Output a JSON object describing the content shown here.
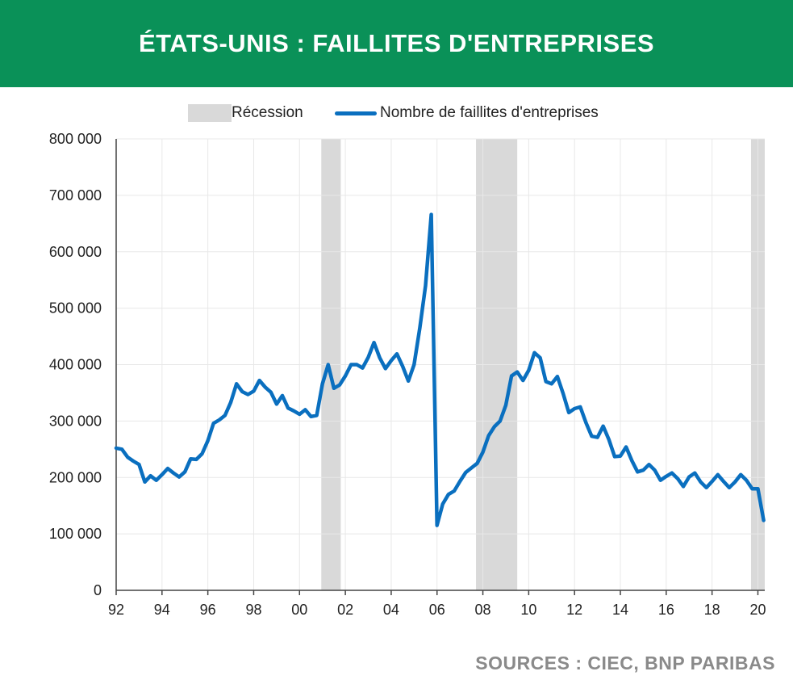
{
  "header": {
    "title": "ÉTATS-UNIS : FAILLITES D'ENTREPRISES"
  },
  "legend": {
    "recession_label": "Récession",
    "series_label": "Nombre de faillites d'entreprises"
  },
  "source": "SOURCES : CIEC, BNP PARIBAS",
  "colors": {
    "header_bg": "#0a9158",
    "series": "#0a6fbf",
    "recession": "#d9d9d9",
    "grid": "#e8e8e8"
  },
  "chart_data": {
    "type": "line",
    "title": "ÉTATS-UNIS : FAILLITES D'ENTREPRISES",
    "xlabel": "",
    "ylabel": "",
    "xlim": [
      1992.0,
      2020.3
    ],
    "ylim": [
      0,
      800000
    ],
    "grid": true,
    "legend_position": "top-center",
    "x_ticks": [
      {
        "value": 1992,
        "label": "92"
      },
      {
        "value": 1994,
        "label": "94"
      },
      {
        "value": 1996,
        "label": "96"
      },
      {
        "value": 1998,
        "label": "98"
      },
      {
        "value": 2000,
        "label": "00"
      },
      {
        "value": 2002,
        "label": "02"
      },
      {
        "value": 2004,
        "label": "04"
      },
      {
        "value": 2006,
        "label": "06"
      },
      {
        "value": 2008,
        "label": "08"
      },
      {
        "value": 2010,
        "label": "10"
      },
      {
        "value": 2012,
        "label": "12"
      },
      {
        "value": 2014,
        "label": "14"
      },
      {
        "value": 2016,
        "label": "16"
      },
      {
        "value": 2018,
        "label": "18"
      },
      {
        "value": 2020,
        "label": "20"
      }
    ],
    "y_ticks": [
      {
        "value": 0,
        "label": "0"
      },
      {
        "value": 100000,
        "label": "100 000"
      },
      {
        "value": 200000,
        "label": "200 000"
      },
      {
        "value": 300000,
        "label": "300 000"
      },
      {
        "value": 400000,
        "label": "400 000"
      },
      {
        "value": 500000,
        "label": "500 000"
      },
      {
        "value": 600000,
        "label": "600 000"
      },
      {
        "value": 700000,
        "label": "700 000"
      },
      {
        "value": 800000,
        "label": "800 000"
      }
    ],
    "recessions": [
      {
        "name": "Récession",
        "start": 2000.95,
        "end": 2001.8
      },
      {
        "name": "Récession",
        "start": 2007.7,
        "end": 2009.5
      },
      {
        "name": "Récession",
        "start": 2019.7,
        "end": 2020.3
      }
    ],
    "series": [
      {
        "name": "Nombre de faillites d'entreprises",
        "points": [
          [
            1992.0,
            252000
          ],
          [
            1992.25,
            250000
          ],
          [
            1992.5,
            236000
          ],
          [
            1992.75,
            229000
          ],
          [
            1993.0,
            223000
          ],
          [
            1993.25,
            192000
          ],
          [
            1993.5,
            203000
          ],
          [
            1993.75,
            195000
          ],
          [
            1994.0,
            205000
          ],
          [
            1994.25,
            216000
          ],
          [
            1994.5,
            208000
          ],
          [
            1994.75,
            201000
          ],
          [
            1995.0,
            210000
          ],
          [
            1995.25,
            233000
          ],
          [
            1995.5,
            232000
          ],
          [
            1995.75,
            242000
          ],
          [
            1996.0,
            265000
          ],
          [
            1996.25,
            296000
          ],
          [
            1996.5,
            302000
          ],
          [
            1996.75,
            310000
          ],
          [
            1997.0,
            333000
          ],
          [
            1997.25,
            366000
          ],
          [
            1997.5,
            352000
          ],
          [
            1997.75,
            347000
          ],
          [
            1998.0,
            353000
          ],
          [
            1998.25,
            372000
          ],
          [
            1998.5,
            360000
          ],
          [
            1998.75,
            351000
          ],
          [
            1999.0,
            330000
          ],
          [
            1999.25,
            345000
          ],
          [
            1999.5,
            323000
          ],
          [
            1999.75,
            318000
          ],
          [
            2000.0,
            312000
          ],
          [
            2000.25,
            320000
          ],
          [
            2000.5,
            308000
          ],
          [
            2000.75,
            310000
          ],
          [
            2001.0,
            366000
          ],
          [
            2001.25,
            400000
          ],
          [
            2001.5,
            358000
          ],
          [
            2001.75,
            364000
          ],
          [
            2002.0,
            380000
          ],
          [
            2002.25,
            400000
          ],
          [
            2002.5,
            400000
          ],
          [
            2002.75,
            394000
          ],
          [
            2003.0,
            413000
          ],
          [
            2003.25,
            439000
          ],
          [
            2003.5,
            412000
          ],
          [
            2003.75,
            393000
          ],
          [
            2004.0,
            407000
          ],
          [
            2004.25,
            419000
          ],
          [
            2004.5,
            397000
          ],
          [
            2004.75,
            371000
          ],
          [
            2005.0,
            400000
          ],
          [
            2005.25,
            465000
          ],
          [
            2005.5,
            540000
          ],
          [
            2005.75,
            666000
          ],
          [
            2006.0,
            115000
          ],
          [
            2006.25,
            153000
          ],
          [
            2006.5,
            170000
          ],
          [
            2006.75,
            176000
          ],
          [
            2007.0,
            193000
          ],
          [
            2007.25,
            209000
          ],
          [
            2007.5,
            217000
          ],
          [
            2007.75,
            225000
          ],
          [
            2008.0,
            245000
          ],
          [
            2008.25,
            274000
          ],
          [
            2008.5,
            290000
          ],
          [
            2008.75,
            300000
          ],
          [
            2009.0,
            328000
          ],
          [
            2009.25,
            380000
          ],
          [
            2009.5,
            387000
          ],
          [
            2009.75,
            372000
          ],
          [
            2010.0,
            390000
          ],
          [
            2010.25,
            421000
          ],
          [
            2010.5,
            412000
          ],
          [
            2010.75,
            370000
          ],
          [
            2011.0,
            366000
          ],
          [
            2011.25,
            379000
          ],
          [
            2011.5,
            349000
          ],
          [
            2011.75,
            315000
          ],
          [
            2012.0,
            322000
          ],
          [
            2012.25,
            325000
          ],
          [
            2012.5,
            297000
          ],
          [
            2012.75,
            273000
          ],
          [
            2013.0,
            271000
          ],
          [
            2013.25,
            291000
          ],
          [
            2013.5,
            267000
          ],
          [
            2013.75,
            237000
          ],
          [
            2014.0,
            238000
          ],
          [
            2014.25,
            254000
          ],
          [
            2014.5,
            230000
          ],
          [
            2014.75,
            210000
          ],
          [
            2015.0,
            213000
          ],
          [
            2015.25,
            223000
          ],
          [
            2015.5,
            213000
          ],
          [
            2015.75,
            195000
          ],
          [
            2016.0,
            202000
          ],
          [
            2016.25,
            208000
          ],
          [
            2016.5,
            198000
          ],
          [
            2016.75,
            184000
          ],
          [
            2017.0,
            201000
          ],
          [
            2017.25,
            208000
          ],
          [
            2017.5,
            192000
          ],
          [
            2017.75,
            182000
          ],
          [
            2018.0,
            193000
          ],
          [
            2018.25,
            205000
          ],
          [
            2018.5,
            193000
          ],
          [
            2018.75,
            182000
          ],
          [
            2019.0,
            192000
          ],
          [
            2019.25,
            205000
          ],
          [
            2019.5,
            195000
          ],
          [
            2019.75,
            180000
          ],
          [
            2020.0,
            180000
          ],
          [
            2020.25,
            124000
          ]
        ]
      }
    ]
  }
}
